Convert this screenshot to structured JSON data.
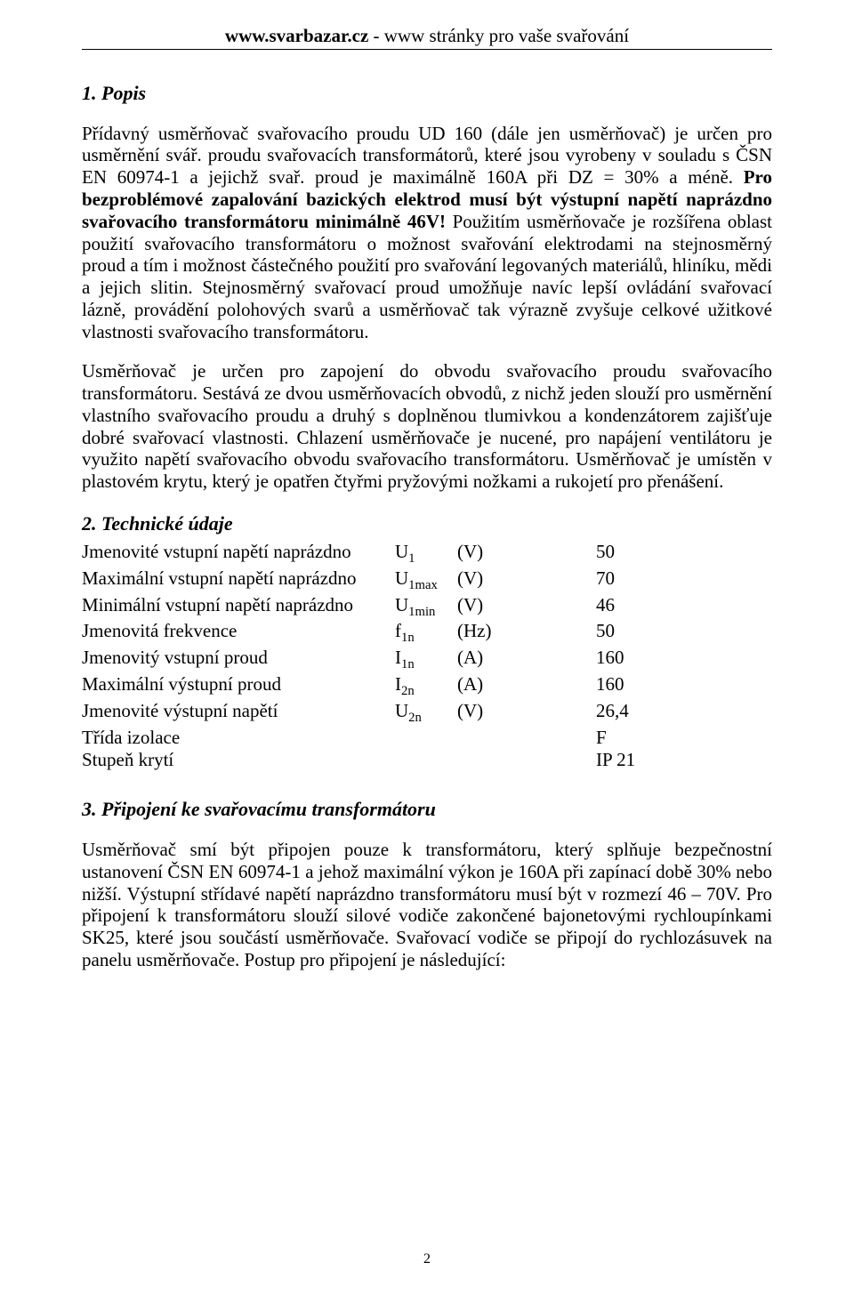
{
  "header": {
    "site_bold": "www.svarbazar.cz",
    "site_rest": " - www stránky pro vaše svařování"
  },
  "sections": {
    "s1_title": "1. Popis",
    "s1_p1a": "Přídavný usměrňovač svařovacího proudu UD 160 (dále jen usměrňovač) je určen pro usměrnění svář. proudu svařovacích transformátorů, které jsou vyrobeny v souladu s ČSN EN 60974-1 a jejichž svař. proud je maximálně 160A při DZ = 30% a méně. ",
    "s1_p1_bold": "Pro bezproblémové zapalování bazických elektrod musí být výstupní napětí naprázdno svařovacího transformátoru minimálně 46V!",
    "s1_p1b": " Použitím usměrňovače je rozšířena oblast použití svařovacího  transformátoru o možnost svařování elektrodami na stejnosměrný proud a tím i možnost částečného použití pro svařování legovaných materiálů, hliníku, mědi a jejich slitin. Stejnosměrný svařovací proud umožňuje  navíc lepší ovládání svařovací  lázně, provádění polohových svarů a usměrňovač tak výrazně zvyšuje celkové užitkové vlastnosti svařovacího transformátoru.",
    "s1_p2": "Usměrňovač je určen pro zapojení do obvodu svařovacího proudu svařovacího transformátoru. Sestává ze dvou usměrňovacích obvodů, z nichž jeden  slouží pro usměrnění vlastního svařovacího proudu a druhý s doplněnou tlumivkou a kondenzátorem zajišťuje dobré svařovací vlastnosti. Chlazení usměrňovače je nucené, pro napájení ventilátoru je využito napětí svařovacího obvodu svařovacího transformátoru. Usměrňovač je umístěn v plastovém krytu, který je opatřen čtyřmi pryžovými nožkami a rukojetí pro přenášení.",
    "s2_title": "2. Technické údaje",
    "s3_title": "3. Připojení ke svařovacímu transformátoru",
    "s3_p1": "Usměrňovač smí být připojen pouze k transformátoru, který splňuje bezpečnostní ustanovení ČSN EN 60974-1 a jehož maximální výkon je 160A při zapínací době 30% nebo nižší. Výstupní střídavé napětí naprázdno transformátoru musí být v rozmezí 46 – 70V. Pro připojení k transformátoru  slouží silové vodiče zakončené bajonetovými rychloupínkami SK25, které jsou součástí usměrňovače. Svařovací vodiče se připojí  do rychlozásuvek na panelu usměrňovače. Postup pro připojení je následující:"
  },
  "specs": [
    {
      "label": "Jmenovité vstupní napětí  naprázdno",
      "sym": "U",
      "sub": "1",
      "unit": "(V)",
      "val": "  50"
    },
    {
      "label": "Maximální vstupní napětí  naprázdno",
      "sym": "U",
      "sub": "1max",
      "unit": "(V)",
      "val": "  70"
    },
    {
      "label": "Minimální vstupní napětí  naprázdno",
      "sym": "U",
      "sub": "1min",
      "unit": "(V)",
      "val": "  46"
    },
    {
      "label": "Jmenovitá frekvence",
      "sym": "f",
      "sub": "1n",
      "unit": "(Hz)",
      "val": "  50"
    },
    {
      "label": "Jmenovitý vstupní proud",
      "sym": "I",
      "sub": "1n",
      "unit": "(A)",
      "val": "160"
    },
    {
      "label": "Maximální výstupní  proud",
      "sym": "I",
      "sub": "2n",
      "unit": "(A)",
      "val": "160"
    },
    {
      "label": "Jmenovité výstupní napětí",
      "sym": "U",
      "sub": "2n",
      "unit": "(V)",
      "val": "  26,4"
    },
    {
      "label": "Třída izolace",
      "sym": "",
      "sub": "",
      "unit": "",
      "val": "F"
    },
    {
      "label": "Stupeň krytí",
      "sym": "",
      "sub": "",
      "unit": "",
      "val": "IP 21"
    }
  ],
  "page_number": "2"
}
